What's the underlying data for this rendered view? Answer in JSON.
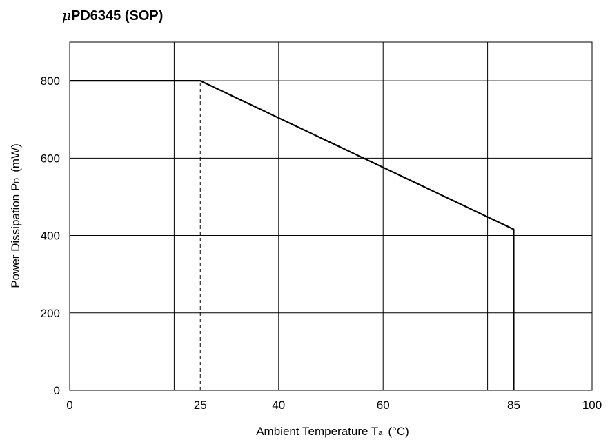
{
  "title": {
    "prefix": "μ",
    "text": "PD6345 (SOP)"
  },
  "chart_data": {
    "type": "line",
    "title": "μPD6345 (SOP)",
    "xlabel": {
      "main": "Ambient Temperature T",
      "sub": "a",
      "unit": "(°C)"
    },
    "ylabel": {
      "main": "Power Dissipation P",
      "sub": "D",
      "unit": "(mW)"
    },
    "xlim": [
      0,
      100
    ],
    "ylim": [
      0,
      900
    ],
    "x_ticks": [
      {
        "value": 0,
        "label": "0"
      },
      {
        "value": 25,
        "label": "25"
      },
      {
        "value": 40,
        "label": "40"
      },
      {
        "value": 60,
        "label": "60"
      },
      {
        "value": 85,
        "label": "85"
      },
      {
        "value": 100,
        "label": "100"
      }
    ],
    "y_ticks": [
      {
        "value": 0,
        "label": "0"
      },
      {
        "value": 200,
        "label": "200"
      },
      {
        "value": 400,
        "label": "400"
      },
      {
        "value": 600,
        "label": "600"
      },
      {
        "value": 800,
        "label": "800"
      }
    ],
    "grid": true,
    "vertical_gridlines": [
      20,
      40,
      60,
      80
    ],
    "horizontal_gridlines": [
      200,
      400,
      600,
      800
    ],
    "series": [
      {
        "x": [
          0,
          25,
          85,
          85
        ],
        "y": [
          800,
          800,
          416,
          0
        ]
      }
    ],
    "reference_lines": [
      {
        "style": "dashed",
        "x": [
          25,
          25
        ],
        "y": [
          0,
          800
        ]
      }
    ],
    "colors": {
      "line": "#000000",
      "grid": "#000000",
      "background": "#ffffff"
    }
  }
}
